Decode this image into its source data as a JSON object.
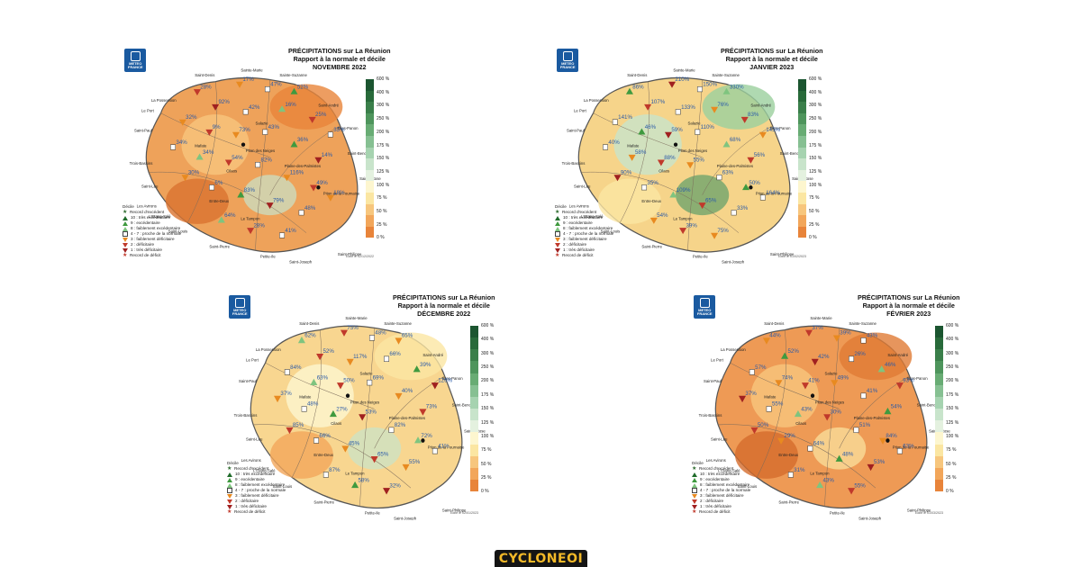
{
  "brand": {
    "label": "CYCLONEOI"
  },
  "logo": {
    "line1": "METEO",
    "line2": "FRANCE"
  },
  "colors": {
    "scale": [
      "#e8843a",
      "#f2a65a",
      "#f7c67d",
      "#fbe6a2",
      "#fdf6cf",
      "#e4f1df",
      "#c8e4cb",
      "#a6d3b0",
      "#86c092",
      "#68ac74",
      "#4e955c",
      "#3a7f4a",
      "#286a3a",
      "#1b5530"
    ],
    "record_excedent": "#2e6b2e",
    "excedentaire": "#3f9a3f",
    "deficitaire": "#e88a20",
    "tres_deficitaire": "#a02020"
  },
  "scale_labels": [
    "600 %",
    "400 %",
    "300 %",
    "250 %",
    "200 %",
    "175 %",
    "150 %",
    "125 %",
    "100 %",
    "75 %",
    "50 %",
    "25 %",
    "0 %"
  ],
  "legend": {
    "title": "Décile",
    "items": [
      {
        "icon": "star-green-icon",
        "label": "Record d'excédent"
      },
      {
        "icon": "triangle-darkgreen-icon",
        "label": "10 : très excédentaire"
      },
      {
        "icon": "triangle-green-icon",
        "label": "9 : excédentaire"
      },
      {
        "icon": "triangle-lightgreen-icon",
        "label": "8 : faiblement excédentaire"
      },
      {
        "icon": "square-white-icon",
        "label": "4 - 7 : proche de la normale"
      },
      {
        "icon": "triangle-down-orange-icon",
        "label": "3 : faiblement déficitaire"
      },
      {
        "icon": "triangle-down-red-icon",
        "label": "2 : déficitaire"
      },
      {
        "icon": "triangle-down-darkred-icon",
        "label": "1 : très déficitaire"
      },
      {
        "icon": "star-red-icon",
        "label": "Record de déficit"
      }
    ]
  },
  "place_names": [
    "Saint-Denis",
    "Sainte-Marie",
    "Sainte-Suzanne",
    "La Possession",
    "Le Port",
    "Saint-André",
    "Bras-Panon",
    "Saint-Paul",
    "Saint-Benoît",
    "Sainte-Rose",
    "Trois-Bassins",
    "Saint-Leu",
    "Les Avirons",
    "L'Etang-Salé",
    "Saint-Louis",
    "Le Tampon",
    "Saint-Pierre",
    "Petite-Ile",
    "Saint-Joseph",
    "Saint-Philippe",
    "Piton des Neiges",
    "Piton de la Fournaise",
    "Plaine-des-Palmistes",
    "Cilaos",
    "Salazie",
    "Mafate",
    "Entre-Deux"
  ],
  "panels": [
    {
      "title_line1": "PRÉCIPITATIONS sur La Réunion",
      "title_line2": "Rapport à la normale et décile",
      "month": "NOVEMBRE 2022",
      "footnote": "Edité le 02/12/2022",
      "base_color": "#eea25a",
      "values": [
        "28%",
        "17%",
        "47%",
        "52%",
        "92%",
        "42%",
        "16%",
        "25%",
        "35%",
        "32%",
        "9%",
        "73%",
        "43%",
        "36%",
        "14%",
        "34%",
        "34%",
        "54%",
        "82%",
        "116%",
        "49%",
        "30%",
        "6%",
        "83%",
        "79%",
        "48%",
        "64%",
        "28%",
        "41%",
        "18%"
      ]
    },
    {
      "title_line1": "PRÉCIPITATIONS sur La Réunion",
      "title_line2": "Rapport à la normale et décile",
      "month": "JANVIER 2023",
      "footnote": "Edité le 01/02/2023",
      "base_color": "#f6d48a",
      "values": [
        "86%",
        "210%",
        "150%",
        "330%",
        "107%",
        "133%",
        "76%",
        "83%",
        "145%",
        "141%",
        "46%",
        "59%",
        "110%",
        "68%",
        "56%",
        "40%",
        "58%",
        "88%",
        "55%",
        "63%",
        "50%",
        "90%",
        "35%",
        "109%",
        "65%",
        "33%",
        "54%",
        "39%",
        "75%",
        "164%"
      ]
    },
    {
      "title_line1": "PRÉCIPITATIONS sur La Réunion",
      "title_line2": "Rapport à la normale et décile",
      "month": "DÉCEMBRE 2022",
      "footnote": "Edité le 02/01/2023",
      "base_color": "#f8d690",
      "values": [
        "62%",
        "75%",
        "48%",
        "65%",
        "52%",
        "117%",
        "66%",
        "39%",
        "126%",
        "84%",
        "63%",
        "50%",
        "69%",
        "40%",
        "73%",
        "37%",
        "48%",
        "27%",
        "53%",
        "82%",
        "72%",
        "85%",
        "66%",
        "45%",
        "65%",
        "55%",
        "87%",
        "58%",
        "32%",
        "41%"
      ]
    },
    {
      "title_line1": "PRÉCIPITATIONS sur La Réunion",
      "title_line2": "Rapport à la normale et décile",
      "month": "FÉVRIER 2023",
      "footnote": "Edité le 01/03/2023",
      "base_color": "#ee9a55",
      "values": [
        "44%",
        "37%",
        "39%",
        "43%",
        "52%",
        "42%",
        "26%",
        "46%",
        "93%",
        "57%",
        "74%",
        "41%",
        "49%",
        "41%",
        "54%",
        "37%",
        "55%",
        "43%",
        "30%",
        "51%",
        "84%",
        "50%",
        "29%",
        "64%",
        "48%",
        "53%",
        "31%",
        "43%",
        "55%",
        "63%"
      ]
    }
  ]
}
